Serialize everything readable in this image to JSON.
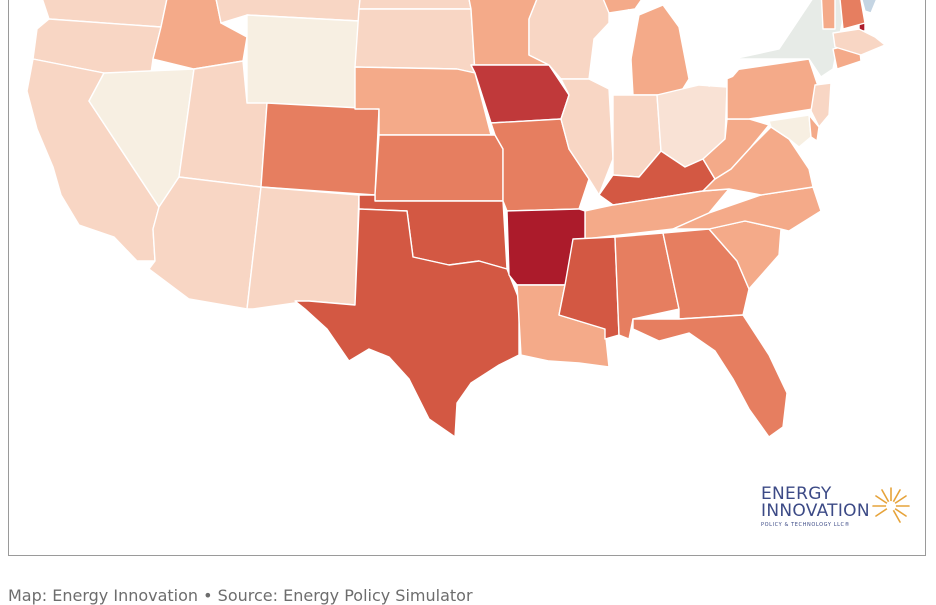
{
  "map": {
    "scale_colors": {
      "lightest": "#f7efe2",
      "light": "#f8d6c4",
      "medium_light": "#f4aa89",
      "medium": "#e67e60",
      "medium_dark": "#d35843",
      "dark": "#c0393a",
      "darkest": "#ac1b2b",
      "gray": "#e7ebe7",
      "blue": "#c5d5e3"
    }
  },
  "logo": {
    "line1": "ENERGY",
    "line2": "INNOVATION",
    "line3": "POLICY & TECHNOLOGY LLC®",
    "accent": "#e6a33a"
  },
  "footer": {
    "credit": "Map: Energy Innovation • Source: Energy Policy Simulator"
  }
}
